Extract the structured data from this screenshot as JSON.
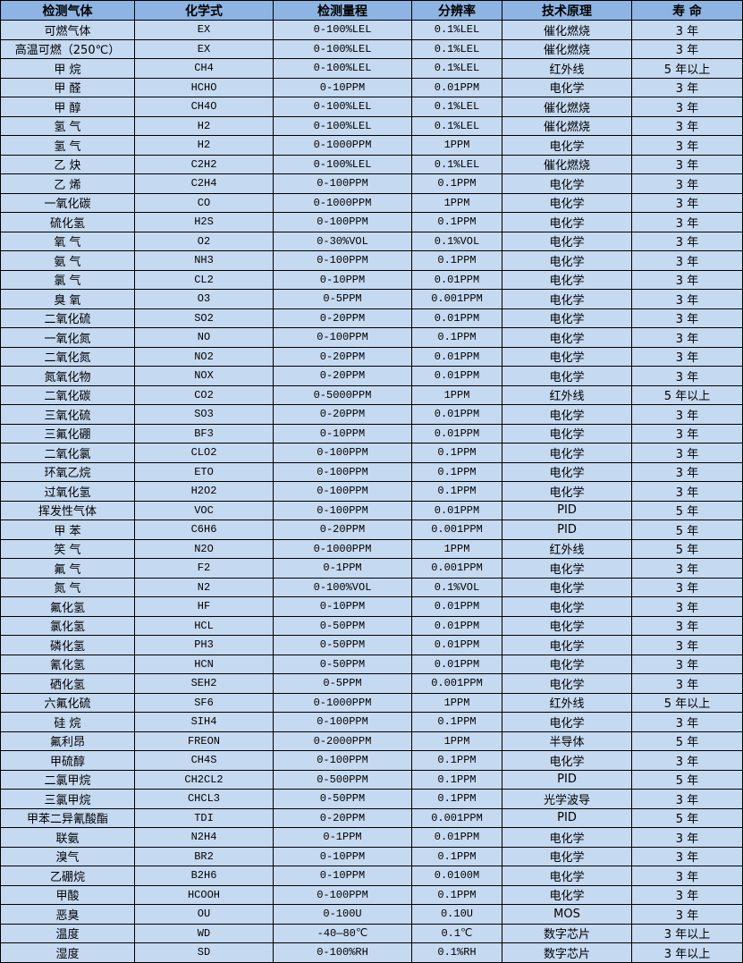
{
  "colors": {
    "header_bg": "#8DB4E2",
    "row_bg": "#C5D9F1",
    "border": "#000000"
  },
  "headers": [
    "检测气体",
    "化学式",
    "检测量程",
    "分辨率",
    "技术原理",
    "寿 命"
  ],
  "rows": [
    [
      "可燃气体",
      "EX",
      "0-100%LEL",
      "0.1%LEL",
      "催化燃烧",
      "3 年"
    ],
    [
      "高温可燃（250℃）",
      "EX",
      "0-100%LEL",
      "0.1%LEL",
      "催化燃烧",
      "3 年"
    ],
    [
      "甲 烷",
      "CH4",
      "0-100%LEL",
      "0.1%LEL",
      "红外线",
      "5 年以上"
    ],
    [
      "甲 醛",
      "HCHO",
      "0-10PPM",
      "0.01PPM",
      "电化学",
      "3 年"
    ],
    [
      "甲 醇",
      "CH4O",
      "0-100%LEL",
      "0.1%LEL",
      "催化燃烧",
      "3 年"
    ],
    [
      "氢 气",
      "H2",
      "0-100%LEL",
      "0.1%LEL",
      "催化燃烧",
      "3 年"
    ],
    [
      "氢 气",
      "H2",
      "0-1000PPM",
      "1PPM",
      "电化学",
      "3 年"
    ],
    [
      "乙 炔",
      "C2H2",
      "0-100%LEL",
      "0.1%LEL",
      "催化燃烧",
      "3 年"
    ],
    [
      "乙 烯",
      "C2H4",
      "0-100PPM",
      "0.1PPM",
      "电化学",
      "3 年"
    ],
    [
      "一氧化碳",
      "CO",
      "0-1000PPM",
      "1PPM",
      "电化学",
      "3 年"
    ],
    [
      "硫化氢",
      "H2S",
      "0-100PPM",
      "0.1PPM",
      "电化学",
      "3 年"
    ],
    [
      "氧 气",
      "O2",
      "0-30%VOL",
      "0.1%VOL",
      "电化学",
      "3 年"
    ],
    [
      "氨 气",
      "NH3",
      "0-100PPM",
      "0.1PPM",
      "电化学",
      "3 年"
    ],
    [
      "氯 气",
      "CL2",
      "0-10PPM",
      "0.01PPM",
      "电化学",
      "3 年"
    ],
    [
      "臭 氧",
      "O3",
      "0-5PPM",
      "0.001PPM",
      "电化学",
      "3 年"
    ],
    [
      "二氧化硫",
      "SO2",
      "0-20PPM",
      "0.01PPM",
      "电化学",
      "3 年"
    ],
    [
      "一氧化氮",
      "NO",
      "0-100PPM",
      "0.1PPM",
      "电化学",
      "3 年"
    ],
    [
      "二氧化氮",
      "NO2",
      "0-20PPM",
      "0.01PPM",
      "电化学",
      "3 年"
    ],
    [
      "氮氧化物",
      "NOX",
      "0-20PPM",
      "0.01PPM",
      "电化学",
      "3 年"
    ],
    [
      "二氧化碳",
      "CO2",
      "0-5000PPM",
      "1PPM",
      "红外线",
      "5 年以上"
    ],
    [
      "三氧化硫",
      "SO3",
      "0-20PPM",
      "0.01PPM",
      "电化学",
      "3 年"
    ],
    [
      "三氟化硼",
      "BF3",
      "0-10PPM",
      "0.01PPM",
      "电化学",
      "3 年"
    ],
    [
      "二氧化氯",
      "CLO2",
      "0-100PPM",
      "0.1PPM",
      "电化学",
      "3 年"
    ],
    [
      "环氧乙烷",
      "ETO",
      "0-100PPM",
      "0.1PPM",
      "电化学",
      "3 年"
    ],
    [
      "过氧化氢",
      "H2O2",
      "0-100PPM",
      "0.1PPM",
      "电化学",
      "3 年"
    ],
    [
      "挥发性气体",
      "VOC",
      "0-100PPM",
      "0.01PPM",
      "PID",
      "5 年"
    ],
    [
      "甲 苯",
      "C6H6",
      "0-20PPM",
      "0.001PPM",
      "PID",
      "5 年"
    ],
    [
      "笑 气",
      "N2O",
      "0-1000PPM",
      "1PPM",
      "红外线",
      "5 年"
    ],
    [
      "氟 气",
      "F2",
      "0-1PPM",
      "0.001PPM",
      "电化学",
      "3 年"
    ],
    [
      "氮 气",
      "N2",
      "0-100%VOL",
      "0.1%VOL",
      "电化学",
      "3 年"
    ],
    [
      "氟化氢",
      "HF",
      "0-10PPM",
      "0.01PPM",
      "电化学",
      "3 年"
    ],
    [
      "氯化氢",
      "HCL",
      "0-50PPM",
      "0.01PPM",
      "电化学",
      "3 年"
    ],
    [
      "磷化氢",
      "PH3",
      "0-50PPM",
      "0.01PPM",
      "电化学",
      "3 年"
    ],
    [
      "氰化氢",
      "HCN",
      "0-50PPM",
      "0.01PPM",
      "电化学",
      "3 年"
    ],
    [
      "硒化氢",
      "SEH2",
      "0-5PPM",
      "0.001PPM",
      "电化学",
      "3 年"
    ],
    [
      "六氟化硫",
      "SF6",
      "0-1000PPM",
      "1PPM",
      "红外线",
      "5 年以上"
    ],
    [
      "硅 烷",
      "SIH4",
      "0-100PPM",
      "0.1PPM",
      "电化学",
      "3 年"
    ],
    [
      "氟利昂",
      "FREON",
      "0-2000PPM",
      "1PPM",
      "半导体",
      "5 年"
    ],
    [
      "甲硫醇",
      "CH4S",
      "0-100PPM",
      "0.1PPM",
      "电化学",
      "3 年"
    ],
    [
      "二氯甲烷",
      "CH2CL2",
      "0-500PPM",
      "0.1PPM",
      "PID",
      "5 年"
    ],
    [
      "三氯甲烷",
      "CHCL3",
      "0-50PPM",
      "0.1PPM",
      "光学波导",
      "3 年"
    ],
    [
      "甲苯二异氰酸酯",
      "TDI",
      "0-20PPM",
      "0.001PPM",
      "PID",
      "5 年"
    ],
    [
      "联氨",
      "N2H4",
      "0-1PPM",
      "0.01PPM",
      "电化学",
      "3 年"
    ],
    [
      "溴气",
      "BR2",
      "0-10PPM",
      "0.1PPM",
      "电化学",
      "3 年"
    ],
    [
      "乙硼烷",
      "B2H6",
      "0-10PPM",
      "0.0100M",
      "电化学",
      "3 年"
    ],
    [
      "甲酸",
      "HCOOH",
      "0-100PPM",
      "0.1PPM",
      "电化学",
      "3 年"
    ],
    [
      "恶臭",
      "OU",
      "0-100U",
      "0.10U",
      "MOS",
      "3 年"
    ],
    [
      "温度",
      "WD",
      "-40—80℃",
      "0.1℃",
      "数字芯片",
      "3 年以上"
    ],
    [
      "湿度",
      "SD",
      "0-100%RH",
      "0.1%RH",
      "数字芯片",
      "3 年以上"
    ]
  ]
}
